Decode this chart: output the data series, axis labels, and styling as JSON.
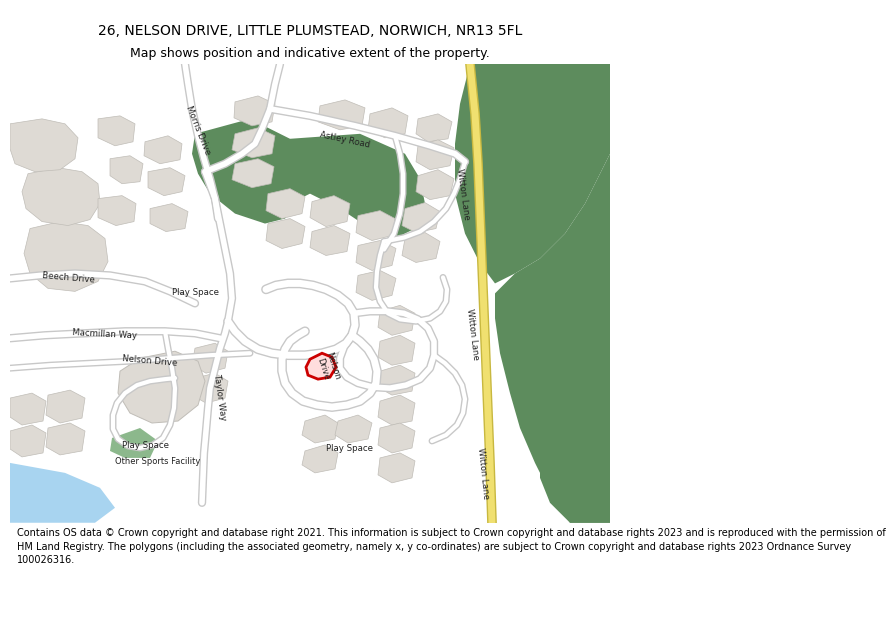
{
  "title_line1": "26, NELSON DRIVE, LITTLE PLUMSTEAD, NORWICH, NR13 5FL",
  "title_line2": "Map shows position and indicative extent of the property.",
  "footer_text_lines": [
    "Contains OS data © Crown copyright and database right 2021. This information is subject to Crown copyright and database rights 2023 and is reproduced with the permission of",
    "HM Land Registry. The polygons (including the associated geometry, namely x, y co-ordinates) are subject to Crown copyright and database rights 2023 Ordnance Survey 100026316."
  ],
  "bg_color": "#ffffff",
  "map_bg": "#f2f0ed",
  "road_color": "#ffffff",
  "road_outline": "#c8c8c8",
  "green_color": "#5d8c5d",
  "light_green": "#8cb88c",
  "building_color": "#dedad4",
  "building_outline": "#c0bdb7",
  "road_yellow": "#f0e070",
  "road_yellow_outline": "#c8b840",
  "water_color": "#a8d4f0",
  "highlight_fill": "#ffdddd",
  "highlight_color": "#cc0000",
  "title_fontsize": 10,
  "subtitle_fontsize": 9,
  "footer_fontsize": 7
}
